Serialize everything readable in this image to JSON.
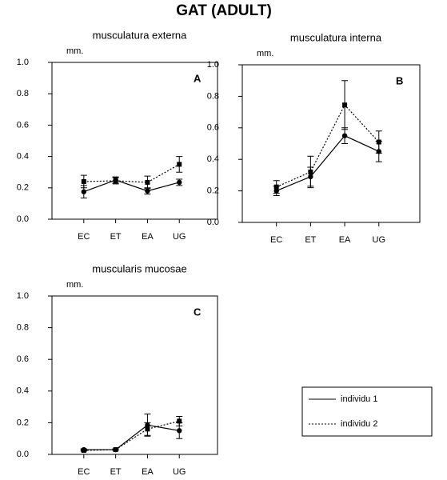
{
  "title": "GAT (ADULT)",
  "chart_data": [
    {
      "type": "line",
      "title": "musculatura externa",
      "ylabel": "mm.",
      "label": "A",
      "categories": [
        "EC",
        "ET",
        "EA",
        "UG"
      ],
      "ylim": [
        0,
        1
      ],
      "yticks": [
        {
          "value": 0,
          "label": "0.0"
        },
        0.2,
        0.4,
        0.6,
        0.8,
        {
          "value": 1,
          "label": "1.0"
        }
      ],
      "series": [
        {
          "name": "individu 1",
          "color": "#000000",
          "dash": "solid",
          "marker": "circle",
          "values": [
            0.175,
            0.25,
            0.18,
            0.235
          ],
          "errors": [
            0.04,
            0.02,
            0.02,
            0.02
          ]
        },
        {
          "name": "individu 2",
          "color": "#000000",
          "dash": "dotted",
          "marker": "square",
          "values": [
            0.24,
            0.245,
            0.235,
            0.35
          ],
          "errors": [
            0.04,
            0.02,
            0.04,
            0.05
          ]
        }
      ]
    },
    {
      "type": "line",
      "title": "musculatura interna",
      "ylabel": "mm.",
      "label": "B",
      "categories": [
        "EC",
        "ET",
        "EA",
        "UG"
      ],
      "ylim": [
        0,
        1
      ],
      "yticks": [
        {
          "value": 0,
          "label": "0.0"
        },
        0.2,
        0.4,
        0.6,
        0.8,
        {
          "value": 1,
          "label": "1.0"
        }
      ],
      "series": [
        {
          "name": "individu 1",
          "color": "#000000",
          "dash": "solid",
          "marker": "circle",
          "values": [
            0.2,
            0.29,
            0.55,
            0.45
          ],
          "errors": [
            0.03,
            0.06,
            0.05,
            0.065
          ]
        },
        {
          "name": "individu 2",
          "color": "#000000",
          "dash": "dotted",
          "marker": "square",
          "values": [
            0.225,
            0.32,
            0.745,
            0.51
          ],
          "errors": [
            0.04,
            0.1,
            0.155,
            0.07
          ]
        }
      ]
    },
    {
      "type": "line",
      "title": "muscularis mucosae",
      "ylabel": "mm.",
      "label": "C",
      "categories": [
        "EC",
        "ET",
        "EA",
        "UG"
      ],
      "ylim": [
        0,
        1
      ],
      "yticks": [
        {
          "value": 0,
          "label": "0.0"
        },
        0.2,
        0.4,
        0.6,
        0.8,
        {
          "value": 1,
          "label": "1.0"
        }
      ],
      "series": [
        {
          "name": "individu 1",
          "color": "#000000",
          "dash": "solid",
          "marker": "circle",
          "values": [
            0.03,
            0.03,
            0.185,
            0.15
          ],
          "errors": [
            0.005,
            0.005,
            0.07,
            0.05
          ]
        },
        {
          "name": "individu 2",
          "color": "#000000",
          "dash": "dotted",
          "marker": "square",
          "values": [
            0.025,
            0.03,
            0.16,
            0.21
          ],
          "errors": [
            0.005,
            0.005,
            0.04,
            0.03
          ]
        }
      ]
    }
  ]
}
